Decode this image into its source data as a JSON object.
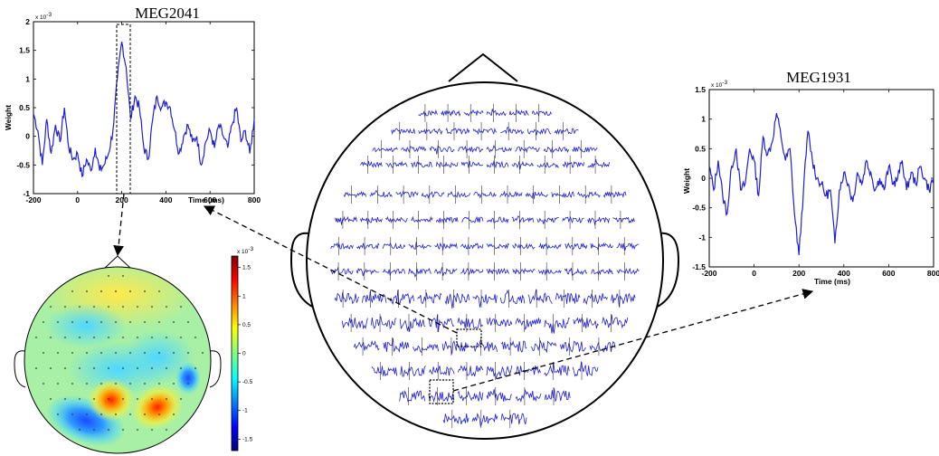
{
  "left_panel": {
    "title": "MEG2041",
    "ylabel": "Weight",
    "xlabel": "Time (ms)",
    "exponent_label": "x 10",
    "exponent_power": "-3",
    "yticks": [
      "2",
      "1.5",
      "1",
      "0.5",
      "0",
      "-0.5",
      "-1"
    ],
    "xticks": [
      "-200",
      "0",
      "200",
      "400",
      "600",
      "800"
    ]
  },
  "right_panel": {
    "title": "MEG1931",
    "ylabel": "Weight",
    "xlabel": "Time (ms)",
    "exponent_label": "x 10",
    "exponent_power": "-3",
    "yticks": [
      "1.5",
      "1",
      "0.5",
      "0",
      "-0.5",
      "-1",
      "-1.5"
    ],
    "xticks": [
      "-200",
      "0",
      "200",
      "400",
      "600",
      "800"
    ]
  },
  "colorbar": {
    "exponent_label": "x 10",
    "exponent_power": "-3",
    "ticks": [
      "1.5",
      "1",
      "0.5",
      "0",
      "-0.5",
      "-1",
      "-1.5"
    ]
  },
  "colors": {
    "trace": "#1f1fd6",
    "axis": "#000000"
  },
  "chart_data": [
    {
      "type": "line",
      "title": "MEG2041",
      "xlabel": "Time (ms)",
      "ylabel": "Weight",
      "xlim": [
        -200,
        800
      ],
      "ylim": [
        -1,
        2
      ],
      "y_scale_note": "x 10^-3",
      "highlight_window_ms": [
        180,
        240
      ],
      "series": [
        {
          "x": [
            -200,
            -180,
            -160,
            -140,
            -120,
            -100,
            -80,
            -60,
            -40,
            -20,
            0,
            20,
            40,
            60,
            80,
            100,
            120,
            140,
            160,
            180,
            200,
            220,
            240,
            260,
            280,
            300,
            320,
            340,
            360,
            380,
            400,
            420,
            440,
            460,
            480,
            500,
            520,
            540,
            560,
            580,
            600,
            620,
            640,
            660,
            680,
            700,
            720,
            740,
            760,
            780,
            800
          ],
          "y": [
            0.4,
            0.1,
            -0.5,
            0.3,
            -0.3,
            0.2,
            -0.1,
            0.5,
            -0.2,
            -0.4,
            -0.3,
            -0.7,
            -0.4,
            -0.6,
            -0.2,
            -0.6,
            -0.5,
            -0.3,
            0.1,
            1.0,
            1.65,
            1.2,
            0.3,
            0.7,
            0.5,
            -0.2,
            -0.4,
            0.3,
            0.7,
            0.5,
            0.6,
            0.5,
            0.1,
            -0.3,
            0.0,
            0.2,
            -0.1,
            0.0,
            -0.5,
            -0.1,
            0.1,
            -0.2,
            0.2,
            0.0,
            -0.2,
            0.2,
            0.5,
            -0.1,
            0.1,
            -0.3,
            0.3
          ]
        }
      ]
    },
    {
      "type": "line",
      "title": "MEG1931",
      "xlabel": "Time (ms)",
      "ylabel": "Weight",
      "xlim": [
        -200,
        800
      ],
      "ylim": [
        -1.5,
        1.5
      ],
      "y_scale_note": "x 10^-3",
      "series": [
        {
          "x": [
            -200,
            -180,
            -160,
            -140,
            -120,
            -100,
            -80,
            -60,
            -40,
            -20,
            0,
            20,
            40,
            60,
            80,
            100,
            120,
            140,
            160,
            180,
            200,
            220,
            240,
            260,
            280,
            300,
            320,
            340,
            360,
            380,
            400,
            420,
            440,
            460,
            480,
            500,
            520,
            540,
            560,
            580,
            600,
            620,
            640,
            660,
            680,
            700,
            720,
            740,
            760,
            780,
            800
          ],
          "y": [
            0.2,
            -0.2,
            0.3,
            -0.3,
            -0.6,
            0.2,
            0.5,
            -0.2,
            -0.1,
            0.5,
            0.3,
            -0.3,
            0.7,
            0.4,
            0.6,
            1.1,
            0.7,
            0.3,
            0.5,
            -0.6,
            -1.3,
            -0.2,
            0.8,
            0.3,
            0.0,
            -0.1,
            -0.3,
            -0.2,
            -1.1,
            -0.2,
            0.1,
            -0.1,
            -0.4,
            0.1,
            -0.1,
            0.3,
            0.1,
            -0.2,
            0.0,
            -0.2,
            0.2,
            -0.1,
            0.0,
            0.3,
            -0.2,
            0.1,
            -0.1,
            0.2,
            0.0,
            -0.2,
            0.0
          ]
        }
      ]
    },
    {
      "type": "heatmap",
      "colorbar_range": [
        -1.7,
        1.7
      ],
      "colorbar_scale_note": "x 10^-3",
      "hotspots": [
        {
          "label": "left-posterior positive",
          "value": 1.5
        },
        {
          "label": "right-posterior positive",
          "value": 1.4
        },
        {
          "label": "left-occipital negative",
          "value": -1.0
        },
        {
          "label": "right-temporal negative",
          "value": -0.8
        }
      ]
    }
  ]
}
